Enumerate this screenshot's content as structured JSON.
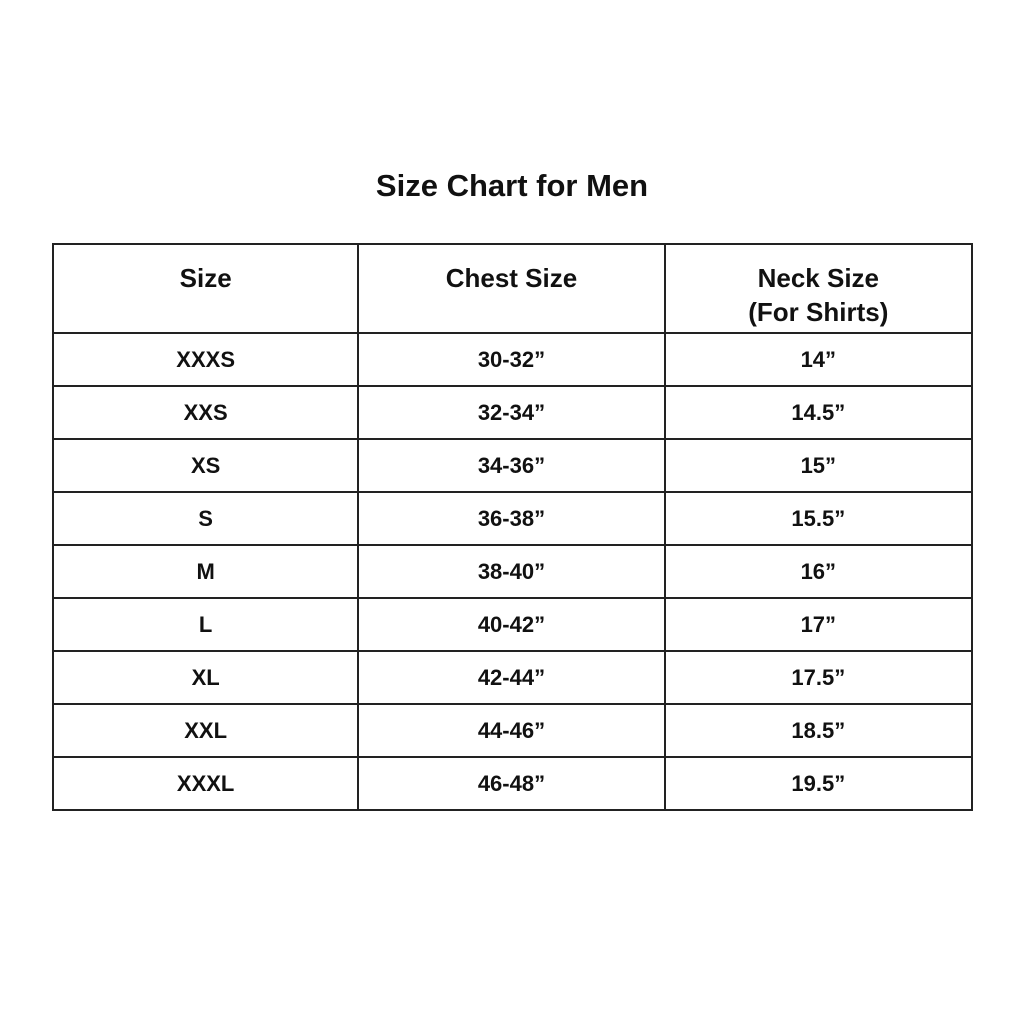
{
  "title": "Size Chart for Men",
  "table": {
    "headers": [
      "Size",
      "Chest Size",
      "Neck Size",
      "(For Shirts)"
    ],
    "rows": [
      [
        "XXXS",
        "30-32”",
        "14”"
      ],
      [
        "XXS",
        "32-34”",
        "14.5”"
      ],
      [
        "XS",
        "34-36”",
        "15”"
      ],
      [
        "S",
        "36-38”",
        "15.5”"
      ],
      [
        "M",
        "38-40”",
        "16”"
      ],
      [
        "L",
        "40-42”",
        "17”"
      ],
      [
        "XL",
        "42-44”",
        "17.5”"
      ],
      [
        "XXL",
        "44-46”",
        "18.5”"
      ],
      [
        "XXXL",
        "46-48”",
        "19.5”"
      ]
    ]
  }
}
